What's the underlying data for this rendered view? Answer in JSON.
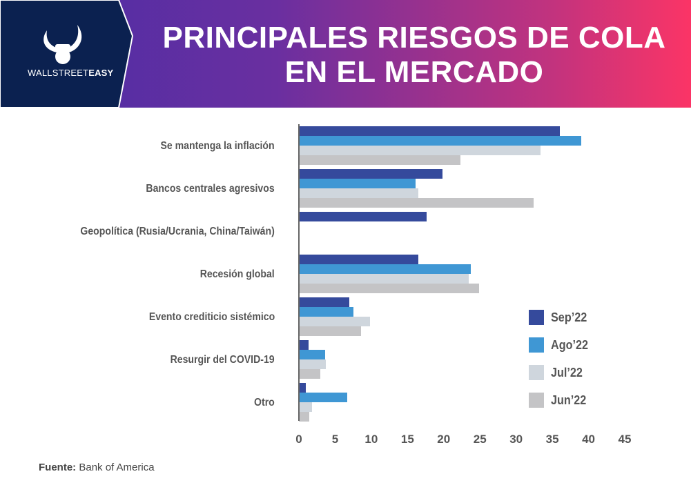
{
  "header": {
    "title_line1": "PRINCIPALES RIESGOS DE COLA",
    "title_line2": "EN EL MERCADO",
    "logo_text_light": "WALLSTREET",
    "logo_text_bold": "EASY"
  },
  "colors": {
    "logo_bg": "#0b2150",
    "Sep'22": "#354a9c",
    "Ago'22": "#3f97d4",
    "Jul'22": "#cfd6dd",
    "Jun'22": "#c4c4c6"
  },
  "chart_data": {
    "type": "bar",
    "orientation": "horizontal",
    "categories": [
      "Se mantenga la inflación",
      "Bancos centrales agresivos",
      "Geopolítica (Rusia/Ucrania, China/Taiwán)",
      "Recesión global",
      "Evento crediticio sistémico",
      "Resurgir del COVID-19",
      "Otro"
    ],
    "series": [
      {
        "name": "Sep’22",
        "values": [
          36,
          19.8,
          17.6,
          16.5,
          7,
          1.3,
          1
        ]
      },
      {
        "name": "Ago’22",
        "values": [
          39,
          16.1,
          null,
          23.7,
          7.5,
          3.6,
          6.7
        ]
      },
      {
        "name": "Jul’22",
        "values": [
          33.4,
          16.5,
          null,
          23.5,
          9.8,
          3.7,
          1.8
        ]
      },
      {
        "name": "Jun’22",
        "values": [
          22.3,
          32.4,
          null,
          24.9,
          8.6,
          3,
          1.4
        ]
      }
    ],
    "xlim": [
      0,
      45
    ],
    "xticks": [
      "0",
      "5",
      "10",
      "15",
      "20",
      "25",
      "30",
      "35",
      "40",
      "45"
    ],
    "legend": "right",
    "grid": false
  },
  "source": {
    "label": "Fuente:",
    "value": "Bank of America"
  }
}
